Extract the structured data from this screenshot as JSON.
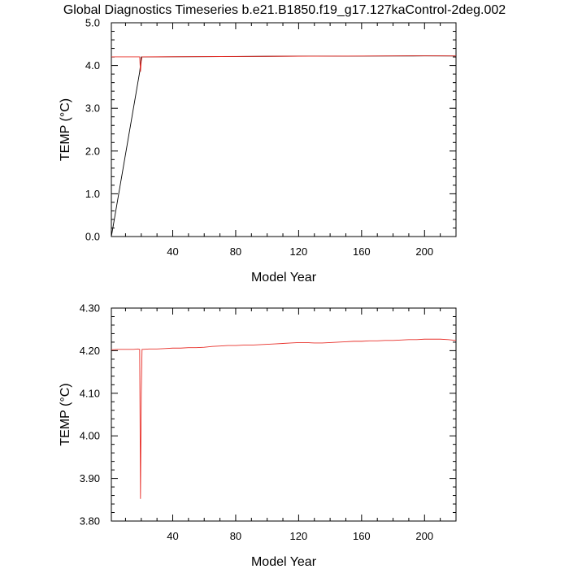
{
  "figure": {
    "title": "Global Diagnostics Timeseries b.e21.B1850.f19_g17.127kaControl-2deg.002"
  },
  "chart_data": [
    {
      "type": "line",
      "xlabel": "Model Year",
      "ylabel": "TEMP (°C)",
      "xlim": [
        1,
        220
      ],
      "ylim": [
        0.0,
        5.0
      ],
      "xticks": [
        40,
        80,
        120,
        160,
        200
      ],
      "xtick_labels": [
        "40",
        "80",
        "120",
        "160",
        "200"
      ],
      "yticks": [
        0.0,
        1.0,
        2.0,
        3.0,
        4.0,
        5.0
      ],
      "ytick_labels": [
        "0.0",
        "1.0",
        "2.0",
        "3.0",
        "4.0",
        "5.0"
      ],
      "grid": false,
      "series": [
        {
          "color": "#000000",
          "x": [
            1,
            19,
            20,
            40,
            60,
            80,
            100,
            120,
            140,
            160,
            180,
            200,
            220
          ],
          "y": [
            0.0,
            3.85,
            4.2,
            4.205,
            4.207,
            4.212,
            4.216,
            4.219,
            4.22,
            4.222,
            4.224,
            4.226,
            4.224
          ]
        },
        {
          "color": "#e8302a",
          "x": [
            1,
            10,
            19,
            19.5,
            20,
            20.5,
            30,
            50,
            70,
            90,
            110,
            130,
            150,
            170,
            190,
            210,
            220
          ],
          "y": [
            4.202,
            4.203,
            4.203,
            3.852,
            4.1,
            4.203,
            4.204,
            4.207,
            4.211,
            4.214,
            4.218,
            4.219,
            4.222,
            4.224,
            4.226,
            4.227,
            4.225
          ]
        }
      ]
    },
    {
      "type": "line",
      "xlabel": "Model Year",
      "ylabel": "TEMP (°C)",
      "xlim": [
        1,
        220
      ],
      "ylim": [
        3.8,
        4.3
      ],
      "xticks": [
        40,
        80,
        120,
        160,
        200
      ],
      "xtick_labels": [
        "40",
        "80",
        "120",
        "160",
        "200"
      ],
      "yticks": [
        3.8,
        3.9,
        4.0,
        4.1,
        4.2,
        4.3
      ],
      "ytick_labels": [
        "3.80",
        "3.90",
        "4.00",
        "4.10",
        "4.20",
        "4.30"
      ],
      "grid": false,
      "series": [
        {
          "color": "#e8302a",
          "x": [
            1,
            5,
            10,
            15,
            18,
            19,
            19.5,
            20,
            20.5,
            21,
            25,
            30,
            35,
            40,
            45,
            50,
            55,
            60,
            65,
            70,
            75,
            80,
            85,
            90,
            95,
            100,
            105,
            110,
            115,
            120,
            125,
            130,
            135,
            140,
            145,
            150,
            155,
            160,
            165,
            170,
            175,
            180,
            185,
            190,
            195,
            200,
            205,
            210,
            215,
            220
          ],
          "y": [
            4.202,
            4.203,
            4.203,
            4.203,
            4.204,
            4.203,
            3.852,
            4.1,
            4.203,
            4.203,
            4.204,
            4.204,
            4.205,
            4.206,
            4.206,
            4.207,
            4.207,
            4.208,
            4.21,
            4.211,
            4.212,
            4.212,
            4.213,
            4.213,
            4.214,
            4.215,
            4.216,
            4.217,
            4.218,
            4.219,
            4.219,
            4.218,
            4.218,
            4.219,
            4.22,
            4.221,
            4.222,
            4.222,
            4.223,
            4.223,
            4.224,
            4.224,
            4.225,
            4.226,
            4.226,
            4.227,
            4.227,
            4.227,
            4.226,
            4.224
          ]
        }
      ]
    }
  ]
}
